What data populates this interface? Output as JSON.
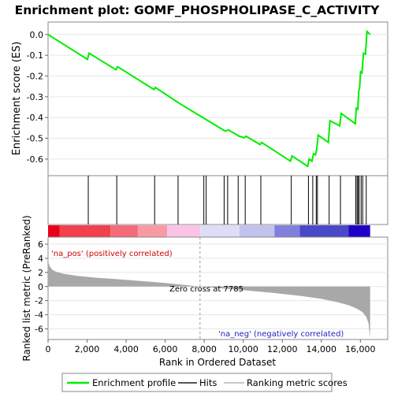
{
  "chart_data": {
    "type": "line",
    "title": "Enrichment plot: GOMF_PHOSPHOLIPASE_C_ACTIVITY",
    "es_panel": {
      "ylabel": "Enrichment score (ES)",
      "ylim": [
        -0.68,
        0.06
      ],
      "yticks": [
        0.0,
        -0.1,
        -0.2,
        -0.3,
        -0.4,
        -0.5,
        -0.6
      ],
      "ytick_labels": [
        "0.0",
        "-0.1",
        "-0.2",
        "-0.3",
        "-0.4",
        "-0.5",
        "-0.6"
      ],
      "series": [
        {
          "name": "Enrichment profile",
          "color": "#00ee00",
          "x": [
            0,
            2020,
            2100,
            3480,
            3560,
            5420,
            5500,
            6620,
            6700,
            8980,
            9060,
            9240,
            9700,
            9780,
            10060,
            10140,
            10860,
            10940,
            12420,
            12500,
            13300,
            13380,
            13520,
            13600,
            13700,
            13760,
            13840,
            14360,
            14440,
            14940,
            15020,
            15740,
            15790,
            15870,
            15920,
            15960,
            16010,
            16080,
            16160,
            16260,
            16340,
            16500
          ],
          "y": [
            0.0,
            -0.12,
            -0.09,
            -0.17,
            -0.155,
            -0.265,
            -0.255,
            -0.325,
            -0.33,
            -0.46,
            -0.465,
            -0.46,
            -0.485,
            -0.49,
            -0.497,
            -0.49,
            -0.53,
            -0.52,
            -0.61,
            -0.585,
            -0.635,
            -0.6,
            -0.61,
            -0.575,
            -0.58,
            -0.555,
            -0.485,
            -0.52,
            -0.415,
            -0.44,
            -0.38,
            -0.43,
            -0.355,
            -0.36,
            -0.27,
            -0.26,
            -0.18,
            -0.185,
            -0.09,
            -0.095,
            0.015,
            0.0
          ]
        }
      ]
    },
    "hits": {
      "name": "Hits",
      "positions": [
        2060,
        3520,
        5460,
        6660,
        7980,
        8100,
        9020,
        9200,
        9740,
        10100,
        10900,
        12460,
        13340,
        13560,
        13740,
        13800,
        14400,
        14980,
        15760,
        15830,
        15880,
        15940,
        16040,
        16120,
        16300
      ]
    },
    "color_bar": {
      "segments": [
        {
          "from": 0,
          "to": 600,
          "color": "#e8001c"
        },
        {
          "from": 600,
          "to": 3200,
          "color": "#f2404e"
        },
        {
          "from": 3200,
          "to": 4600,
          "color": "#f56a78"
        },
        {
          "from": 4600,
          "to": 6100,
          "color": "#f99aa3"
        },
        {
          "from": 6100,
          "to": 7800,
          "color": "#fbc4e6"
        },
        {
          "from": 7800,
          "to": 9800,
          "color": "#ddddf8"
        },
        {
          "from": 9800,
          "to": 11600,
          "color": "#c2c2ef"
        },
        {
          "from": 11600,
          "to": 12900,
          "color": "#8080dc"
        },
        {
          "from": 12900,
          "to": 15400,
          "color": "#4a4ac8"
        },
        {
          "from": 15400,
          "to": 16500,
          "color": "#1e00c8"
        }
      ]
    },
    "metric_panel": {
      "ylabel": "Ranked list metric (PreRanked)",
      "ylim": [
        -7.5,
        7.0
      ],
      "yticks": [
        6,
        4,
        2,
        0,
        -2,
        -4,
        -6
      ],
      "ytick_labels": [
        "6",
        "4",
        "2",
        "0",
        "-2",
        "-4",
        "-6"
      ],
      "series": [
        {
          "name": "Ranking metric scores",
          "color": "#a8a8a8",
          "x": [
            0,
            20,
            80,
            200,
            400,
            800,
            1500,
            2500,
            4000,
            6000,
            7785,
            9500,
            11500,
            13000,
            14000,
            14800,
            15400,
            15800,
            16100,
            16300,
            16420,
            16480,
            16500
          ],
          "y": [
            6.6,
            3.4,
            2.9,
            2.4,
            2.1,
            1.8,
            1.5,
            1.25,
            0.95,
            0.5,
            0.0,
            -0.4,
            -0.9,
            -1.35,
            -1.75,
            -2.2,
            -2.65,
            -3.1,
            -3.6,
            -4.3,
            -5.2,
            -6.8,
            -7.3
          ]
        }
      ],
      "labels": {
        "pos": "'na_pos' (positively correlated)",
        "neg": "'na_neg' (negatively correlated)",
        "zero_cross": "Zero cross at 7785"
      },
      "zero_cross": 7785
    },
    "x_axis": {
      "xlabel": "Rank in Ordered Dataset",
      "xlim": [
        0,
        17400
      ],
      "ticks": [
        0,
        2000,
        4000,
        6000,
        8000,
        10000,
        12000,
        14000,
        16000
      ],
      "tick_labels": [
        "0",
        "2,000",
        "4,000",
        "6,000",
        "8,000",
        "10,000",
        "12,000",
        "14,000",
        "16,000"
      ]
    },
    "legend": {
      "placement": "bottom",
      "items": [
        {
          "name": "Enrichment profile",
          "color": "#00ee00"
        },
        {
          "name": "Hits",
          "color": "#555555"
        },
        {
          "name": "Ranking metric scores",
          "color": "#c8c8c8"
        }
      ]
    }
  }
}
